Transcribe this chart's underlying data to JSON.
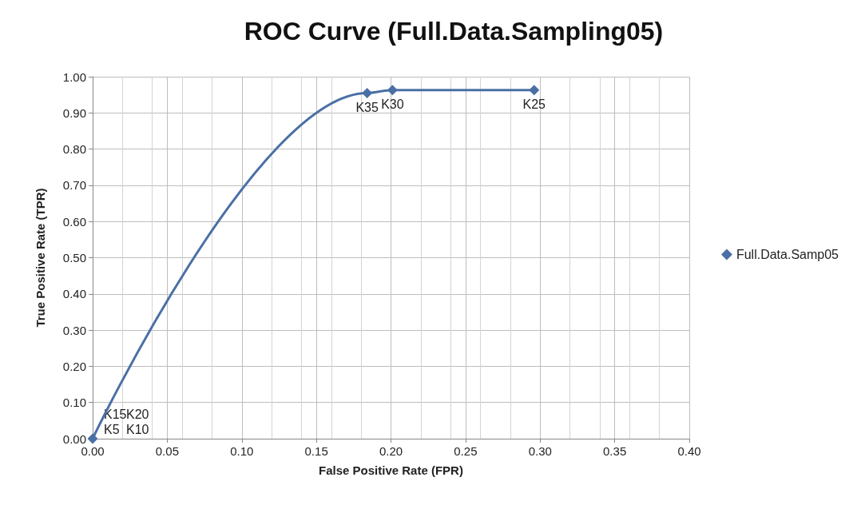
{
  "chart_data": {
    "type": "line",
    "title": "ROC Curve (Full.Data.Sampling05)",
    "xlabel": "False Positive Rate (FPR)",
    "ylabel": "True Positive Rate (TPR)",
    "x": [
      0,
      0.184,
      0.201,
      0.296
    ],
    "series": [
      {
        "name": "Full.Data.Samp05",
        "color": "#4a6fa5",
        "values": [
          0,
          0.955,
          0.963,
          0.963
        ]
      }
    ],
    "xlim": [
      0,
      0.4
    ],
    "xticks": [
      {
        "value": 0,
        "label": "0.00"
      },
      {
        "value": 0.05,
        "label": "0.05"
      },
      {
        "value": 0.1,
        "label": "0.10"
      },
      {
        "value": 0.15,
        "label": "0.15"
      },
      {
        "value": 0.2,
        "label": "0.20"
      },
      {
        "value": 0.25,
        "label": "0.25"
      },
      {
        "value": 0.3,
        "label": "0.30"
      },
      {
        "value": 0.35,
        "label": "0.35"
      },
      {
        "value": 0.4,
        "label": "0.40"
      }
    ],
    "ylim": [
      0,
      1
    ],
    "yticks": [
      {
        "value": 0,
        "label": "0.00"
      },
      {
        "value": 0.1,
        "label": "0.10"
      },
      {
        "value": 0.2,
        "label": "0.20"
      },
      {
        "value": 0.3,
        "label": "0.30"
      },
      {
        "value": 0.4,
        "label": "0.40"
      },
      {
        "value": 0.5,
        "label": "0.50"
      },
      {
        "value": 0.6,
        "label": "0.60"
      },
      {
        "value": 0.7,
        "label": "0.70"
      },
      {
        "value": 0.8,
        "label": "0.80"
      },
      {
        "value": 0.9,
        "label": "0.90"
      },
      {
        "value": 1,
        "label": "1.00"
      }
    ],
    "annotations": [
      {
        "text": "K35",
        "x": 0.184,
        "y": 0.955
      },
      {
        "text": "K30",
        "x": 0.201,
        "y": 0.963
      },
      {
        "text": "K25",
        "x": 0.296,
        "y": 0.963
      },
      {
        "text": "K5",
        "x": 0,
        "y": 0
      },
      {
        "text": "K10",
        "x": 0,
        "y": 0
      },
      {
        "text": "K15",
        "x": 0,
        "y": 0
      },
      {
        "text": "K20",
        "x": 0,
        "y": 0
      }
    ],
    "grid": true,
    "legend": "right",
    "marker": "diamond",
    "line_style": "solid"
  }
}
